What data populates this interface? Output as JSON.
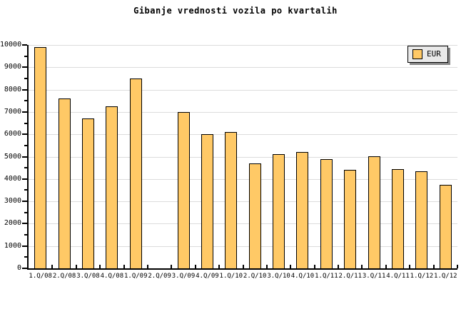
{
  "chart_data": {
    "type": "bar",
    "title": "Gibanje vrednosti vozila po kvartalih",
    "series_name": "EUR",
    "categories": [
      "1.Q/08",
      "2.Q/08",
      "3.Q/08",
      "4.Q/08",
      "1.Q/09",
      "2.Q/09",
      "3.Q/09",
      "4.Q/09",
      "1.Q/10",
      "2.Q/10",
      "3.Q/10",
      "4.Q/10",
      "1.Q/11",
      "2.Q/11",
      "3.Q/11",
      "4.Q/11",
      "1.Q/12",
      "1.Q/12"
    ],
    "values": [
      9900,
      7600,
      6700,
      7250,
      8500,
      0,
      7000,
      6000,
      6100,
      4700,
      5100,
      5200,
      4900,
      4400,
      5000,
      4450,
      4350,
      3750
    ],
    "xlabel": "",
    "ylabel": "",
    "ylim": [
      0,
      10000
    ],
    "ytick_major": 1000,
    "ytick_minor": 500,
    "grid": "horizontal-major",
    "legend_position": "top-right"
  },
  "colors": {
    "bar_fill": "#FFC966",
    "bar_border": "#000000",
    "grid": "#DCDCDC",
    "axis": "#000000",
    "text": "#000000",
    "legend_bg": "#E9E9E9",
    "legend_shadow": "#888888",
    "background": "#FFFFFF"
  }
}
